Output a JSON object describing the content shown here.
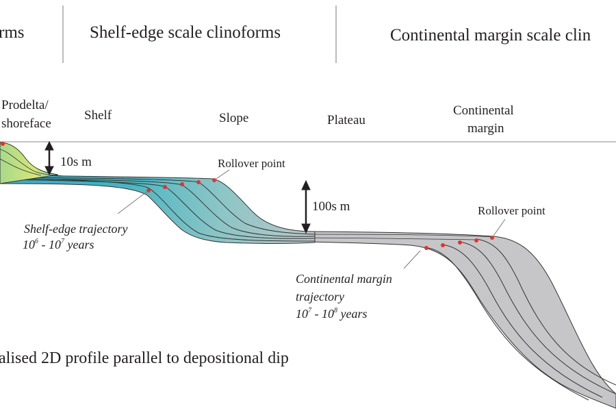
{
  "headers": {
    "delta_scale": "rms",
    "shelf_edge_scale": "Shelf-edge scale clinoforms",
    "continental_margin_scale": "Continental margin scale clin"
  },
  "zones": {
    "prodelta_line1": "Prodelta/",
    "prodelta_line2": "shoreface",
    "shelf": "Shelf",
    "slope": "Slope",
    "plateau": "Plateau",
    "continental_line1": "Continental",
    "continental_line2": "margin"
  },
  "scales": {
    "small": "10s m",
    "large": "100s m"
  },
  "annotations": {
    "rollover_1": "Rollover point",
    "rollover_2": "Rollover point",
    "shelf_traj_title": "Shelf-edge trajectory",
    "shelf_traj_base_a": "10",
    "shelf_traj_exp_a": "6",
    "shelf_traj_sep": " - 10",
    "shelf_traj_exp_b": "7",
    "shelf_traj_unit": " years",
    "cm_traj_line1": "Continental margin",
    "cm_traj_line2": "trajectory",
    "cm_traj_base_a": "10",
    "cm_traj_exp_a": "7",
    "cm_traj_sep": " - 10",
    "cm_traj_exp_b": "8",
    "cm_traj_unit": " years"
  },
  "caption": "alised 2D profile parallel to depositional dip",
  "colors": {
    "rollover_dot": "#e8302a",
    "margin_fill": "#c6c6c8",
    "shelf_fill": "#41b5c3",
    "delta_fill": "#c9e27a"
  }
}
